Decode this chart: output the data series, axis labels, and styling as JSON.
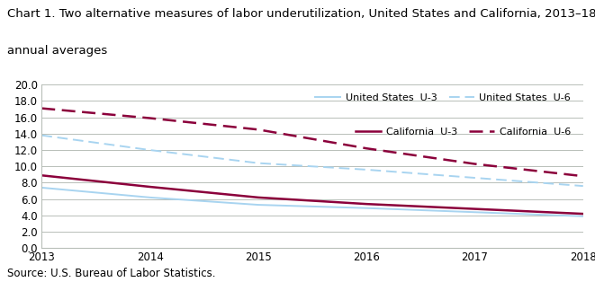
{
  "title_line1": "Chart 1. Two alternative measures of labor underutilization, United States and California, 2013–18",
  "title_line2": "annual averages",
  "source": "Source: U.S. Bureau of Labor Statistics.",
  "years": [
    2013,
    2014,
    2015,
    2016,
    2017,
    2018
  ],
  "us_u3": [
    7.4,
    6.2,
    5.3,
    4.9,
    4.4,
    3.9
  ],
  "us_u6": [
    13.8,
    12.0,
    10.4,
    9.6,
    8.6,
    7.6
  ],
  "ca_u3": [
    8.9,
    7.5,
    6.2,
    5.4,
    4.8,
    4.2
  ],
  "ca_u6": [
    17.1,
    15.9,
    14.5,
    12.2,
    10.3,
    8.8
  ],
  "us_color": "#a8d4f0",
  "ca_color": "#8b003b",
  "ylim": [
    0.0,
    20.0
  ],
  "yticks": [
    0.0,
    2.0,
    4.0,
    6.0,
    8.0,
    10.0,
    12.0,
    14.0,
    16.0,
    18.0,
    20.0
  ],
  "grid_color": "#b8bfb8",
  "background_color": "#ffffff",
  "legend_labels": [
    "United States  U-3",
    "United States  U-6",
    "California  U-3",
    "California  U-6"
  ],
  "title_fontsize": 9.5,
  "axis_fontsize": 8.5,
  "source_fontsize": 8.5
}
